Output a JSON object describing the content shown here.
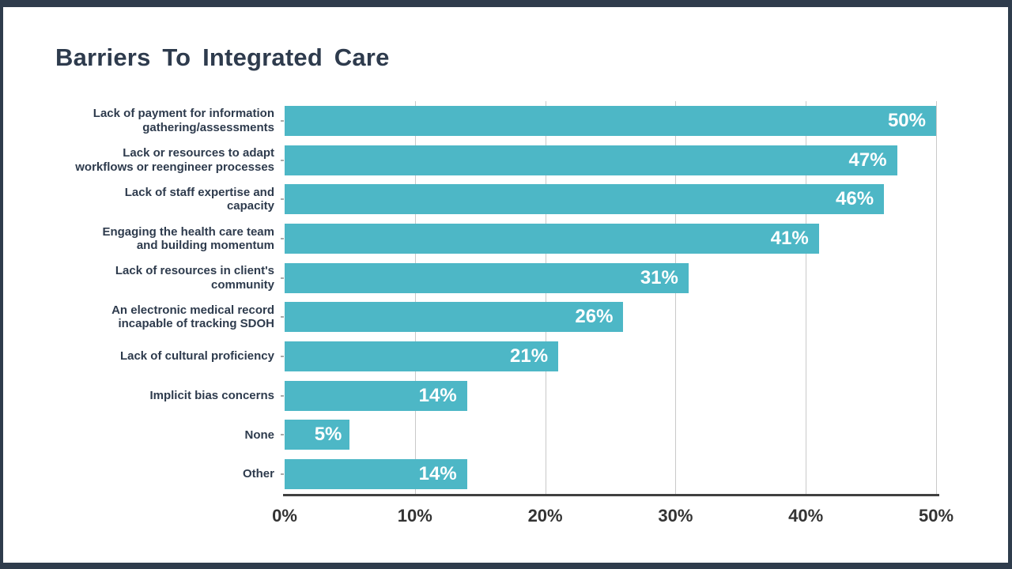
{
  "slide": {
    "title": "Barriers To Integrated Care"
  },
  "chart_data": {
    "type": "bar",
    "orientation": "horizontal",
    "title": "Barriers To Integrated Care",
    "categories": [
      "Lack of payment for information gathering/assessments",
      "Lack or resources to adapt workflows or reengineer processes",
      "Lack of staff expertise and capacity",
      "Engaging the health care team and building momentum",
      "Lack of resources in client's community",
      "An electronic medical record incapable of tracking SDOH",
      "Lack of cultural proficiency",
      "Implicit bias concerns",
      "None",
      "Other"
    ],
    "category_lines": [
      [
        "Lack of payment for information",
        "gathering/assessments"
      ],
      [
        "Lack or resources to adapt",
        "workflows or reengineer processes"
      ],
      [
        "Lack of staff expertise and",
        "capacity"
      ],
      [
        "Engaging the health care team",
        "and building momentum"
      ],
      [
        "Lack of resources in client's",
        "community"
      ],
      [
        "An electronic medical record",
        "incapable of tracking SDOH"
      ],
      [
        "Lack of cultural proficiency"
      ],
      [
        "Implicit bias concerns"
      ],
      [
        "None"
      ],
      [
        "Other"
      ]
    ],
    "values": [
      50,
      47,
      46,
      41,
      31,
      26,
      21,
      14,
      5,
      14
    ],
    "value_labels": [
      "50%",
      "47%",
      "46%",
      "41%",
      "31%",
      "26%",
      "21%",
      "14%",
      "5%",
      "14%"
    ],
    "x_ticks": [
      {
        "value": 0,
        "label": "0%"
      },
      {
        "value": 10,
        "label": "10%"
      },
      {
        "value": 20,
        "label": "20%"
      },
      {
        "value": 30,
        "label": "30%"
      },
      {
        "value": 40,
        "label": "40%"
      },
      {
        "value": 50,
        "label": "50%"
      }
    ],
    "xlim": [
      0,
      50
    ],
    "grid": "vertical gridlines every 10%",
    "legend": "none",
    "colors": {
      "bar": "#4db7c6",
      "value_label": "#ffffff",
      "category_label": "#2e3b4d",
      "tick_label": "#333333",
      "axis_line": "#404040",
      "gridline": "#c9c9c9",
      "title": "#2e3b4d",
      "frame": "#2f3c4c",
      "background": "#ffffff"
    }
  }
}
